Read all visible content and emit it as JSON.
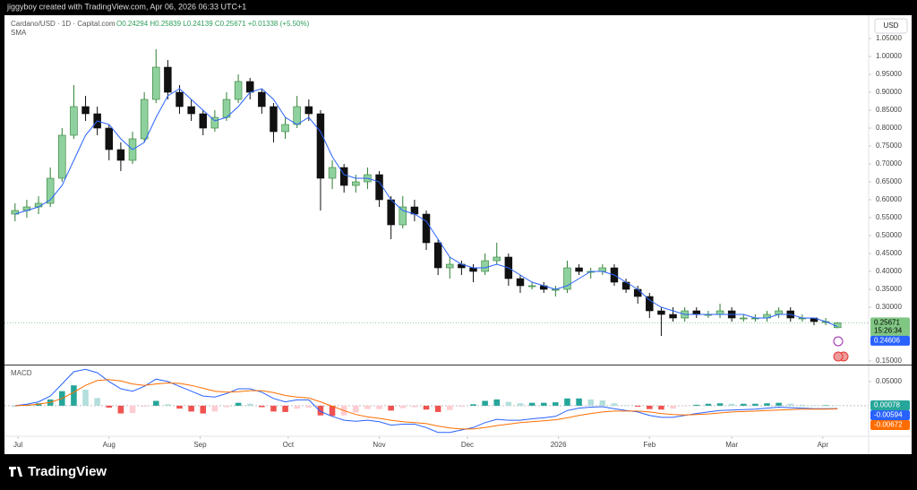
{
  "chart_data": {
    "type": "candlestick",
    "header": "jiggyboy created with TradingView.com, Apr 06, 2026 06:33 UTC+1",
    "symbol": "Cardano/USD · 1D · Capital.com",
    "ohlc_legend": "O0.24294 H0.25839 L0.24139 C0.25671 +0.01338 (+5.50%)",
    "currency": "USD",
    "countdown": "15:26:34",
    "brand": "TradingView",
    "x": [
      -1,
      3,
      7,
      11,
      15,
      19,
      23,
      27,
      31,
      35,
      39,
      43,
      47,
      51,
      55,
      59,
      63,
      67,
      71,
      75,
      79,
      83,
      87,
      91,
      95,
      99,
      103,
      107,
      111,
      115,
      119,
      123,
      127,
      131,
      135,
      139,
      143,
      147,
      151,
      155,
      159,
      163,
      167,
      171,
      175,
      179,
      183,
      187,
      191,
      195,
      199,
      203,
      207,
      211,
      215,
      219,
      223,
      227,
      231,
      235,
      239,
      243,
      247,
      251,
      255,
      259,
      263,
      267,
      271,
      275,
      279
    ],
    "xlim": [
      -4.6,
      289.6
    ],
    "xticks": [
      {
        "value": 0,
        "label": "Jul"
      },
      {
        "value": 31,
        "label": "Aug"
      },
      {
        "value": 62,
        "label": "Sep"
      },
      {
        "value": 92,
        "label": "Oct"
      },
      {
        "value": 123,
        "label": "Nov"
      },
      {
        "value": 153,
        "label": "Dec"
      },
      {
        "value": 184,
        "label": "2026"
      },
      {
        "value": 215,
        "label": "Feb"
      },
      {
        "value": 243,
        "label": "Mar"
      },
      {
        "value": 274,
        "label": "Apr"
      }
    ],
    "open": [
      0.56,
      0.57,
      0.58,
      0.59,
      0.66,
      0.78,
      0.86,
      0.84,
      0.8,
      0.74,
      0.71,
      0.77,
      0.88,
      0.97,
      0.9,
      0.86,
      0.84,
      0.8,
      0.83,
      0.88,
      0.93,
      0.9,
      0.86,
      0.79,
      0.81,
      0.86,
      0.84,
      0.66,
      0.69,
      0.64,
      0.65,
      0.67,
      0.6,
      0.53,
      0.58,
      0.56,
      0.48,
      0.41,
      0.42,
      0.41,
      0.4,
      0.43,
      0.44,
      0.38,
      0.36,
      0.36,
      0.35,
      0.35,
      0.41,
      0.4,
      0.4,
      0.41,
      0.37,
      0.35,
      0.33,
      0.29,
      0.28,
      0.27,
      0.29,
      0.28,
      0.28,
      0.29,
      0.27,
      0.27,
      0.27,
      0.28,
      0.29,
      0.27,
      0.27,
      0.26,
      0.24294
    ],
    "high": [
      0.59,
      0.6,
      0.61,
      0.69,
      0.8,
      0.92,
      0.89,
      0.86,
      0.81,
      0.76,
      0.79,
      0.9,
      1.02,
      0.99,
      0.92,
      0.88,
      0.85,
      0.85,
      0.9,
      0.95,
      0.94,
      0.91,
      0.87,
      0.83,
      0.89,
      0.88,
      0.85,
      0.71,
      0.7,
      0.67,
      0.69,
      0.68,
      0.61,
      0.61,
      0.6,
      0.57,
      0.49,
      0.44,
      0.43,
      0.42,
      0.45,
      0.48,
      0.45,
      0.39,
      0.37,
      0.37,
      0.36,
      0.43,
      0.42,
      0.41,
      0.42,
      0.42,
      0.38,
      0.36,
      0.34,
      0.3,
      0.3,
      0.3,
      0.3,
      0.29,
      0.31,
      0.3,
      0.28,
      0.28,
      0.29,
      0.3,
      0.3,
      0.28,
      0.27,
      0.27,
      0.25839
    ],
    "low": [
      0.54,
      0.55,
      0.56,
      0.58,
      0.65,
      0.77,
      0.82,
      0.78,
      0.71,
      0.68,
      0.7,
      0.76,
      0.87,
      0.88,
      0.84,
      0.82,
      0.78,
      0.79,
      0.82,
      0.87,
      0.88,
      0.84,
      0.76,
      0.77,
      0.8,
      0.82,
      0.57,
      0.63,
      0.62,
      0.62,
      0.63,
      0.58,
      0.49,
      0.52,
      0.54,
      0.46,
      0.39,
      0.38,
      0.39,
      0.37,
      0.39,
      0.42,
      0.36,
      0.34,
      0.35,
      0.34,
      0.33,
      0.34,
      0.39,
      0.38,
      0.39,
      0.36,
      0.34,
      0.31,
      0.27,
      0.22,
      0.26,
      0.26,
      0.27,
      0.27,
      0.27,
      0.26,
      0.26,
      0.26,
      0.26,
      0.27,
      0.26,
      0.26,
      0.25,
      0.25,
      0.24139
    ],
    "close": [
      0.57,
      0.58,
      0.59,
      0.66,
      0.78,
      0.86,
      0.84,
      0.8,
      0.74,
      0.71,
      0.77,
      0.88,
      0.97,
      0.9,
      0.86,
      0.84,
      0.8,
      0.83,
      0.88,
      0.93,
      0.9,
      0.86,
      0.79,
      0.81,
      0.86,
      0.84,
      0.66,
      0.69,
      0.64,
      0.65,
      0.67,
      0.6,
      0.53,
      0.58,
      0.56,
      0.48,
      0.41,
      0.42,
      0.41,
      0.4,
      0.43,
      0.44,
      0.38,
      0.36,
      0.36,
      0.35,
      0.35,
      0.41,
      0.4,
      0.4,
      0.41,
      0.37,
      0.35,
      0.33,
      0.29,
      0.28,
      0.27,
      0.29,
      0.28,
      0.28,
      0.29,
      0.27,
      0.27,
      0.27,
      0.28,
      0.29,
      0.27,
      0.27,
      0.26,
      0.26,
      0.25671
    ],
    "up_color": "#8fd19e",
    "up_border": "#2e7d32",
    "down_color": "#111111",
    "ylim": [
      0.14,
      1.115
    ],
    "yticks": [
      {
        "value": 0.15,
        "label": "0.15000"
      },
      {
        "value": 0.3,
        "label": "0.30000"
      },
      {
        "value": 0.35,
        "label": "0.35000"
      },
      {
        "value": 0.4,
        "label": "0.40000"
      },
      {
        "value": 0.45,
        "label": "0.45000"
      },
      {
        "value": 0.5,
        "label": "0.50000"
      },
      {
        "value": 0.55,
        "label": "0.55000"
      },
      {
        "value": 0.6,
        "label": "0.60000"
      },
      {
        "value": 0.65,
        "label": "0.65000"
      },
      {
        "value": 0.7,
        "label": "0.70000"
      },
      {
        "value": 0.75,
        "label": "0.75000"
      },
      {
        "value": 0.8,
        "label": "0.80000"
      },
      {
        "value": 0.85,
        "label": "0.85000"
      },
      {
        "value": 0.9,
        "label": "0.90000"
      },
      {
        "value": 0.95,
        "label": "0.95000"
      },
      {
        "value": 1.0,
        "label": "1.00000"
      },
      {
        "value": 1.05,
        "label": "1.05000"
      }
    ],
    "price_badge_color": "#81c784",
    "sma": {
      "name": "SMA",
      "color": "#2962ff",
      "values": [
        0.56,
        0.57,
        0.58,
        0.6,
        0.64,
        0.71,
        0.78,
        0.82,
        0.81,
        0.77,
        0.74,
        0.76,
        0.83,
        0.89,
        0.91,
        0.88,
        0.85,
        0.82,
        0.83,
        0.86,
        0.9,
        0.91,
        0.88,
        0.83,
        0.81,
        0.83,
        0.79,
        0.72,
        0.67,
        0.66,
        0.66,
        0.65,
        0.6,
        0.57,
        0.56,
        0.54,
        0.49,
        0.44,
        0.42,
        0.41,
        0.41,
        0.42,
        0.41,
        0.39,
        0.37,
        0.36,
        0.35,
        0.36,
        0.38,
        0.4,
        0.4,
        0.39,
        0.37,
        0.35,
        0.32,
        0.3,
        0.29,
        0.28,
        0.28,
        0.28,
        0.28,
        0.28,
        0.28,
        0.27,
        0.27,
        0.28,
        0.28,
        0.27,
        0.27,
        0.26,
        0.24606
      ]
    },
    "macd": {
      "name": "MACD",
      "ylim": [
        -0.063,
        0.083
      ],
      "yticks": [
        {
          "value": 0.05,
          "label": "0.05000"
        }
      ],
      "histogram": {
        "colors": [
          "#26a69a",
          "#b2dfdb",
          "#ffcdd2",
          "#ef5350"
        ],
        "values": [
          0,
          0.002,
          0.005,
          0.013,
          0.03,
          0.042,
          0.033,
          0.016,
          -0.004,
          -0.016,
          -0.015,
          -0.002,
          0.01,
          0.003,
          -0.006,
          -0.012,
          -0.016,
          -0.012,
          -0.003,
          0.006,
          0.004,
          -0.003,
          -0.012,
          -0.013,
          -0.006,
          -0.004,
          -0.02,
          -0.021,
          -0.02,
          -0.014,
          -0.007,
          -0.007,
          -0.01,
          -0.005,
          -0.003,
          -0.008,
          -0.013,
          -0.009,
          -0.002,
          0.003,
          0.01,
          0.013,
          0.008,
          0.005,
          0.006,
          0.006,
          0.007,
          0.015,
          0.015,
          0.013,
          0.011,
          0.005,
          0.001,
          -0.002,
          -0.007,
          -0.008,
          -0.006,
          -0.001,
          0.002,
          0.004,
          0.005,
          0.004,
          0.004,
          0.004,
          0.005,
          0.006,
          0.004,
          0.002,
          0.001,
          0.001,
          0.00078
        ]
      },
      "series": [
        {
          "color": "#2962ff",
          "values": [
            0,
            0.003,
            0.008,
            0.02,
            0.045,
            0.07,
            0.075,
            0.068,
            0.05,
            0.035,
            0.03,
            0.04,
            0.055,
            0.05,
            0.04,
            0.03,
            0.02,
            0.018,
            0.025,
            0.035,
            0.035,
            0.028,
            0.015,
            0.008,
            0.012,
            0.012,
            -0.012,
            -0.022,
            -0.03,
            -0.032,
            -0.03,
            -0.033,
            -0.04,
            -0.038,
            -0.038,
            -0.045,
            -0.055,
            -0.055,
            -0.05,
            -0.045,
            -0.035,
            -0.028,
            -0.03,
            -0.03,
            -0.027,
            -0.025,
            -0.022,
            -0.01,
            -0.005,
            -0.003,
            -0.002,
            -0.006,
            -0.01,
            -0.013,
            -0.02,
            -0.024,
            -0.024,
            -0.02,
            -0.016,
            -0.013,
            -0.01,
            -0.009,
            -0.008,
            -0.007,
            -0.005,
            -0.003,
            -0.004,
            -0.005,
            -0.006,
            -0.006,
            -0.00594
          ]
        },
        {
          "color": "#ff6d00",
          "values": [
            0,
            0.001,
            0.003,
            0.007,
            0.015,
            0.028,
            0.042,
            0.052,
            0.054,
            0.051,
            0.045,
            0.042,
            0.045,
            0.047,
            0.046,
            0.042,
            0.036,
            0.03,
            0.028,
            0.029,
            0.031,
            0.031,
            0.027,
            0.021,
            0.018,
            0.016,
            0.008,
            -0.001,
            -0.01,
            -0.018,
            -0.023,
            -0.026,
            -0.03,
            -0.033,
            -0.035,
            -0.037,
            -0.042,
            -0.046,
            -0.048,
            -0.048,
            -0.045,
            -0.041,
            -0.038,
            -0.035,
            -0.033,
            -0.031,
            -0.029,
            -0.025,
            -0.02,
            -0.016,
            -0.013,
            -0.011,
            -0.011,
            -0.011,
            -0.013,
            -0.016,
            -0.018,
            -0.019,
            -0.018,
            -0.017,
            -0.015,
            -0.013,
            -0.012,
            -0.011,
            -0.01,
            -0.009,
            -0.008,
            -0.007,
            -0.007,
            -0.007,
            -0.00672
          ]
        }
      ]
    }
  }
}
